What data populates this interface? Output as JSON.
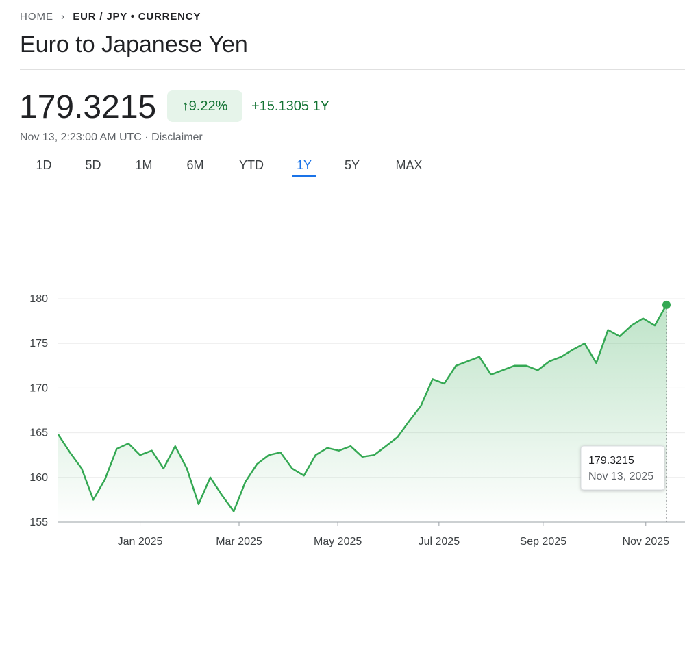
{
  "header": {
    "breadcrumb": [
      "HOME",
      "EUR / JPY • CURRENCY"
    ],
    "title": "Euro to Japanese Yen"
  },
  "quote": {
    "price": "179.3215",
    "change_percent": "9.22%",
    "change": "+15.1305 1Y",
    "timestamp": "Nov 13, 2:23:00 AM UTC",
    "disclaimer": "Disclaimer"
  },
  "ranges": {
    "items": [
      "1D",
      "5D",
      "1M",
      "6M",
      "YTD",
      "1Y",
      "5Y",
      "MAX"
    ],
    "selected": 5
  },
  "chart_data": {
    "type": "line",
    "color": "#34a853",
    "grid": true,
    "values": [
      164.8,
      162.8,
      161,
      157.5,
      159.8,
      163.2,
      163.8,
      162.5,
      163,
      161,
      163.5,
      161,
      157,
      160,
      158,
      156.2,
      159.5,
      161.5,
      162.5,
      162.8,
      161,
      160.2,
      162.5,
      163.3,
      163,
      163.5,
      162.3,
      162.5,
      163.5,
      164.5,
      166.3,
      168,
      171,
      170.5,
      172.5,
      173,
      173.5,
      171.5,
      172,
      172.5,
      172.5,
      172,
      173,
      173.5,
      174.3,
      175,
      172.8,
      176.5,
      175.8,
      177,
      177.8,
      177,
      179.3215
    ],
    "xlim": [
      0,
      52
    ],
    "xticks": [
      {
        "value": 7,
        "label": "Jan 2025"
      },
      {
        "value": 15.46,
        "label": "Mar 2025"
      },
      {
        "value": 23.9,
        "label": "May 2025"
      },
      {
        "value": 32.55,
        "label": "Jul 2025"
      },
      {
        "value": 41.45,
        "label": "Sep 2025"
      },
      {
        "value": 50.23,
        "label": "Nov 2025"
      }
    ],
    "ylim": [
      155,
      180
    ],
    "yticks": [
      155,
      160,
      165,
      170,
      175,
      180
    ],
    "tooltip_date": "Nov 13, 2025"
  }
}
